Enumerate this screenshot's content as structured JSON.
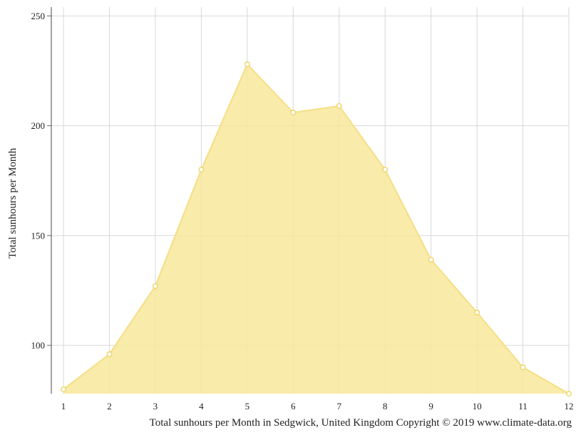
{
  "chart_data": {
    "type": "area",
    "x": [
      "1",
      "2",
      "3",
      "4",
      "5",
      "6",
      "7",
      "8",
      "9",
      "10",
      "11",
      "12"
    ],
    "series": [
      {
        "values": [
          80,
          96,
          127,
          180,
          228,
          206,
          209,
          180,
          139,
          115,
          90,
          78
        ]
      }
    ],
    "ylabel": "Total sunhours per Month",
    "xlabel": "",
    "caption": "Total sunhours per Month in Sedgwick, United Kingdom Copyright © 2019 www.climate-data.org",
    "yticks": [
      100,
      150,
      200,
      250
    ],
    "ylim": [
      78,
      254
    ],
    "grid": true,
    "legend": "none",
    "colors": {
      "fill": "#f8e79b",
      "stroke": "#f5df84",
      "marker_stroke": "#ecd35e",
      "marker_fill": "#ffffff",
      "grid": "#d8d8d8",
      "axis": "#666666"
    }
  }
}
